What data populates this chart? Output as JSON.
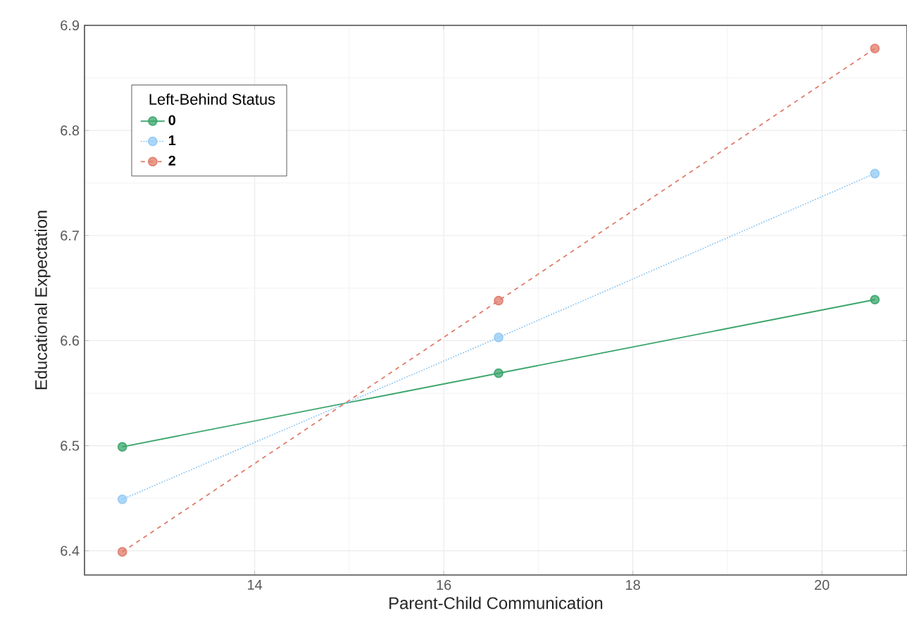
{
  "chart_data": {
    "type": "line",
    "xlabel": "Parent-Child Communication",
    "ylabel": "Educational Expectation",
    "legend_title": "Left-Behind Status",
    "x": [
      12.6,
      16.58,
      20.56
    ],
    "series": [
      {
        "name": "0",
        "color": "#3aa56b",
        "values": [
          6.499,
          6.569,
          6.639
        ],
        "line_style": "solid"
      },
      {
        "name": "1",
        "color": "#92c9f4",
        "values": [
          6.449,
          6.603,
          6.759
        ],
        "line_style": "dotted"
      },
      {
        "name": "2",
        "color": "#e07b69",
        "values": [
          6.399,
          6.638,
          6.878
        ],
        "line_style": "dashed"
      }
    ],
    "xlim": [
      12.2,
      20.9
    ],
    "ylim": [
      6.377,
      6.9
    ],
    "xticks": [
      14,
      16,
      18,
      20
    ],
    "yticks": [
      6.4,
      6.5,
      6.6,
      6.7,
      6.8,
      6.9
    ],
    "grid": true,
    "legend": "top left",
    "marker": "circle"
  }
}
